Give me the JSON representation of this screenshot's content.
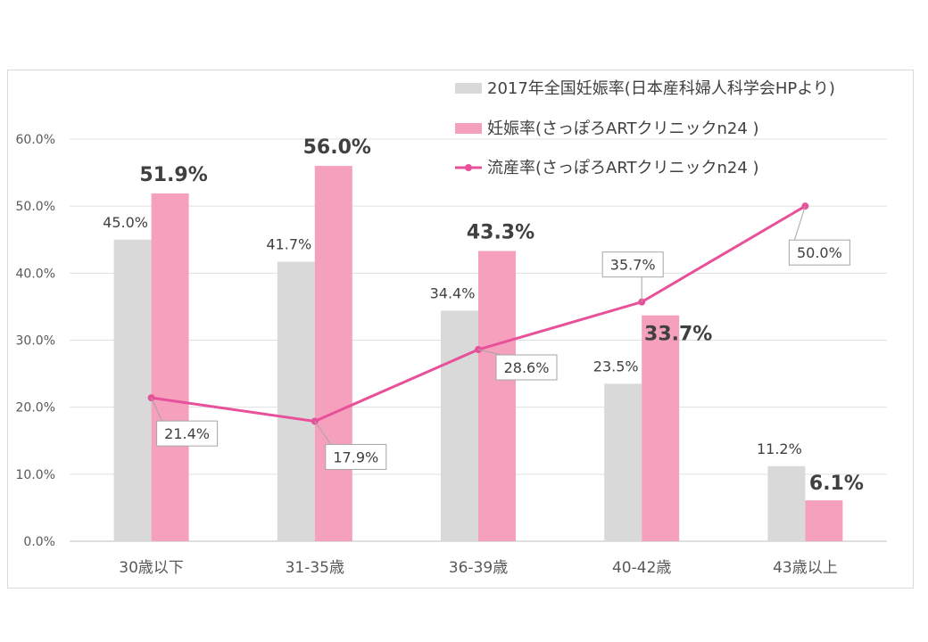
{
  "chart_data": {
    "type": "bar",
    "categories": [
      "30歳以下",
      "31-35歳",
      "36-39歳",
      "40-42歳",
      "43歳以上"
    ],
    "ylim": [
      0,
      60
    ],
    "yticks": [
      "0.0%",
      "10.0%",
      "20.0%",
      "30.0%",
      "40.0%",
      "50.0%",
      "60.0%"
    ],
    "grid": true,
    "legend_position": "top-right",
    "series": [
      {
        "name": "2017年全国妊娠率(日本産科婦人科学会HPより)",
        "kind": "bar",
        "color": "#d9d9d9",
        "values": [
          45.0,
          41.7,
          34.4,
          23.5,
          11.2
        ],
        "labels": [
          "45.0%",
          "41.7%",
          "34.4%",
          "23.5%",
          "11.2%"
        ]
      },
      {
        "name": "妊娠率(さっぽろARTクリニックn24 )",
        "kind": "bar",
        "color": "#f5a0bc",
        "values": [
          51.9,
          56.0,
          43.3,
          33.7,
          6.1
        ],
        "labels": [
          "51.9%",
          "56.0%",
          "43.3%",
          "33.7%",
          "6.1%"
        ]
      },
      {
        "name": "流産率(さっぽろARTクリニックn24 )",
        "kind": "line",
        "color": "#e8519a",
        "values": [
          21.4,
          17.9,
          28.6,
          35.7,
          50.0
        ],
        "labels": [
          "21.4%",
          "17.9%",
          "28.6%",
          "35.7%",
          "50.0%"
        ]
      }
    ]
  }
}
